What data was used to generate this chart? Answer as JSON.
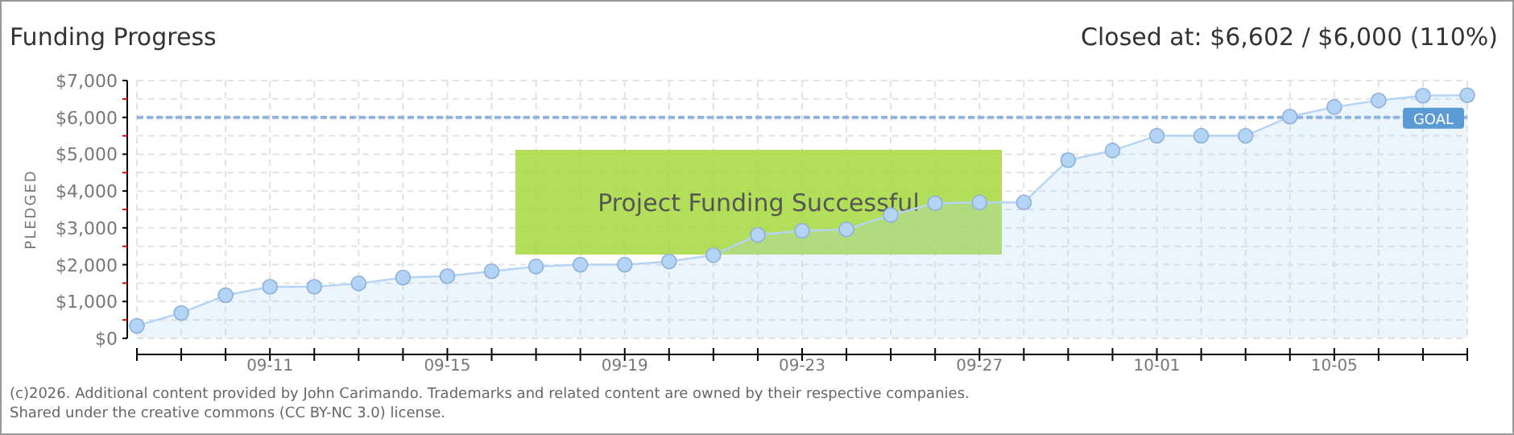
{
  "chart_data": {
    "type": "area",
    "title": "Funding Progress",
    "subtitle": "Closed at: $6,602 / $6,000 (110%)",
    "ylabel": "PLEDGED",
    "x": [
      "--09-08",
      "--09-09",
      "--09-10",
      "--09-11",
      "--09-12",
      "--09-13",
      "--09-14",
      "--09-15",
      "--09-16",
      "--09-17",
      "--09-18",
      "--09-19",
      "--09-20",
      "--09-21",
      "--09-22",
      "--09-23",
      "--09-24",
      "--09-25",
      "--09-26",
      "--09-27",
      "--09-28",
      "--09-29",
      "--09-30",
      "--10-01",
      "--10-02",
      "--10-03",
      "--10-04",
      "--10-05",
      "--10-06",
      "--10-07",
      "--10-08"
    ],
    "series": [
      {
        "color": "#b3d4f5",
        "values": [
          340,
          690,
          1170,
          1400,
          1400,
          1490,
          1650,
          1690,
          1820,
          1950,
          2000,
          2000,
          2090,
          2260,
          2810,
          2920,
          2960,
          3350,
          3670,
          3690,
          3690,
          4840,
          5100,
          5500,
          5500,
          5500,
          6020,
          6280,
          6460,
          6590,
          6600
        ]
      }
    ],
    "xlim": [
      "--09-08",
      "--10-08"
    ],
    "xticks": [
      {
        "value": "--09-08",
        "label": null
      },
      {
        "value": "--09-09",
        "label": null
      },
      {
        "value": "--09-10",
        "label": null
      },
      {
        "value": "--09-11",
        "label": "09-11"
      },
      {
        "value": "--09-12",
        "label": null
      },
      {
        "value": "--09-13",
        "label": null
      },
      {
        "value": "--09-14",
        "label": null
      },
      {
        "value": "--09-15",
        "label": "09-15"
      },
      {
        "value": "--09-16",
        "label": null
      },
      {
        "value": "--09-17",
        "label": null
      },
      {
        "value": "--09-18",
        "label": null
      },
      {
        "value": "--09-19",
        "label": "09-19"
      },
      {
        "value": "--09-20",
        "label": null
      },
      {
        "value": "--09-21",
        "label": null
      },
      {
        "value": "--09-22",
        "label": null
      },
      {
        "value": "--09-23",
        "label": "09-23"
      },
      {
        "value": "--09-24",
        "label": null
      },
      {
        "value": "--09-25",
        "label": null
      },
      {
        "value": "--09-26",
        "label": null
      },
      {
        "value": "--09-27",
        "label": "09-27"
      },
      {
        "value": "--09-28",
        "label": null
      },
      {
        "value": "--09-29",
        "label": null
      },
      {
        "value": "--09-30",
        "label": null
      },
      {
        "value": "--10-01",
        "label": "10-01"
      },
      {
        "value": "--10-02",
        "label": null
      },
      {
        "value": "--10-03",
        "label": null
      },
      {
        "value": "--10-04",
        "label": null
      },
      {
        "value": "--10-05",
        "label": "10-05"
      },
      {
        "value": "--10-06",
        "label": null
      },
      {
        "value": "--10-07",
        "label": null
      },
      {
        "value": "--10-08",
        "label": null
      }
    ],
    "ylim": [
      0,
      7000
    ],
    "yticks": [
      {
        "value": 0,
        "label": "$0"
      },
      {
        "value": 500,
        "label": null
      },
      {
        "value": 1000,
        "label": "$1,000"
      },
      {
        "value": 1500,
        "label": null
      },
      {
        "value": 2000,
        "label": "$2,000"
      },
      {
        "value": 2500,
        "label": null
      },
      {
        "value": 3000,
        "label": "$3,000"
      },
      {
        "value": 3500,
        "label": null
      },
      {
        "value": 4000,
        "label": "$4,000"
      },
      {
        "value": 4500,
        "label": null
      },
      {
        "value": 5000,
        "label": "$5,000"
      },
      {
        "value": 5500,
        "label": null
      },
      {
        "value": 6000,
        "label": "$6,000"
      },
      {
        "value": 6500,
        "label": null
      },
      {
        "value": 7000,
        "label": "$7,000"
      }
    ],
    "ref_lines": [
      {
        "axis": "y",
        "value": 6000,
        "label": "GOAL",
        "color": "#8fb4e0",
        "line_style": "dashed"
      }
    ],
    "annotations": [
      "Project Funding Successful",
      "(c)2026. Additional content provided by John Carimando. Trademarks and related content are owned by their respective companies.",
      "Shared under the creative commons (CC BY-NC 3.0) license."
    ],
    "grid": true,
    "marker": "circle"
  }
}
